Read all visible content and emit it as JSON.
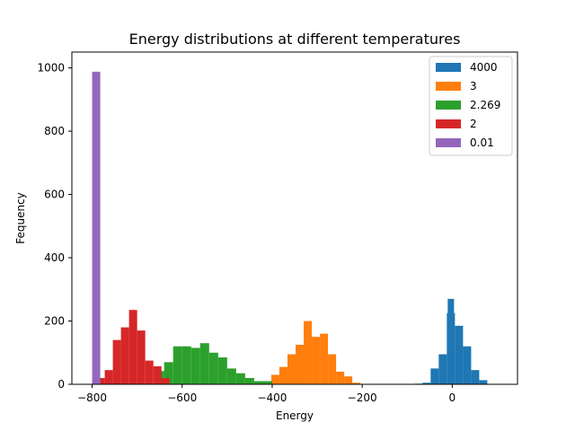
{
  "chart_data": {
    "type": "bar",
    "title": "Energy distributions at different temperatures",
    "xlabel": "Energy",
    "ylabel": "Fequency",
    "xlim": [
      -845,
      145
    ],
    "ylim": [
      0,
      1050
    ],
    "xticks": [
      -800,
      -600,
      -400,
      -200,
      0
    ],
    "yticks": [
      0,
      200,
      400,
      600,
      800,
      1000
    ],
    "legend_position": "top-right",
    "grid": false,
    "series": [
      {
        "name": "4000",
        "color": "#1f77b4",
        "bins": [
          {
            "x0": -84,
            "x1": -66,
            "y": 2
          },
          {
            "x0": -66,
            "x1": -48,
            "y": 5
          },
          {
            "x0": -48,
            "x1": -30,
            "y": 50
          },
          {
            "x0": -30,
            "x1": -12,
            "y": 95
          },
          {
            "x0": -12,
            "x1": 6,
            "y": 225
          },
          {
            "x0": 6,
            "x1": 24,
            "y": 185
          },
          {
            "x0": 24,
            "x1": 42,
            "y": 120
          },
          {
            "x0": 42,
            "x1": 60,
            "y": 45
          },
          {
            "x0": 60,
            "x1": 78,
            "y": 13
          }
        ]
      },
      {
        "name": "3",
        "color": "#ff7f0e",
        "bins": [
          {
            "x0": -420,
            "x1": -402,
            "y": 5
          },
          {
            "x0": -402,
            "x1": -384,
            "y": 30
          },
          {
            "x0": -384,
            "x1": -366,
            "y": 55
          },
          {
            "x0": -366,
            "x1": -348,
            "y": 95
          },
          {
            "x0": -348,
            "x1": -330,
            "y": 125
          },
          {
            "x0": -330,
            "x1": -312,
            "y": 200
          },
          {
            "x0": -312,
            "x1": -294,
            "y": 150
          },
          {
            "x0": -294,
            "x1": -276,
            "y": 160
          },
          {
            "x0": -276,
            "x1": -258,
            "y": 95
          },
          {
            "x0": -258,
            "x1": -240,
            "y": 40
          },
          {
            "x0": -240,
            "x1": -222,
            "y": 25
          },
          {
            "x0": -222,
            "x1": -204,
            "y": 5
          }
        ]
      },
      {
        "name": "2.269",
        "color": "#2ca02c",
        "bins": [
          {
            "x0": -660,
            "x1": -640,
            "y": 42
          },
          {
            "x0": -640,
            "x1": -620,
            "y": 70
          },
          {
            "x0": -620,
            "x1": -600,
            "y": 120
          },
          {
            "x0": -600,
            "x1": -580,
            "y": 120
          },
          {
            "x0": -580,
            "x1": -560,
            "y": 115
          },
          {
            "x0": -560,
            "x1": -540,
            "y": 130
          },
          {
            "x0": -540,
            "x1": -520,
            "y": 100
          },
          {
            "x0": -520,
            "x1": -500,
            "y": 85
          },
          {
            "x0": -500,
            "x1": -480,
            "y": 50
          },
          {
            "x0": -480,
            "x1": -460,
            "y": 35
          },
          {
            "x0": -460,
            "x1": -440,
            "y": 20
          },
          {
            "x0": -440,
            "x1": -420,
            "y": 10
          },
          {
            "x0": -420,
            "x1": -400,
            "y": 10
          }
        ]
      },
      {
        "name": "2",
        "color": "#d62728",
        "bins": [
          {
            "x0": -790,
            "x1": -772,
            "y": 20
          },
          {
            "x0": -772,
            "x1": -754,
            "y": 45
          },
          {
            "x0": -754,
            "x1": -736,
            "y": 140
          },
          {
            "x0": -736,
            "x1": -718,
            "y": 180
          },
          {
            "x0": -718,
            "x1": -700,
            "y": 235
          },
          {
            "x0": -700,
            "x1": -682,
            "y": 170
          },
          {
            "x0": -682,
            "x1": -664,
            "y": 75
          },
          {
            "x0": -664,
            "x1": -646,
            "y": 57
          },
          {
            "x0": -646,
            "x1": -628,
            "y": 20
          }
        ]
      },
      {
        "name": "0.01",
        "color": "#9467bd",
        "bins": [
          {
            "x0": -800,
            "x1": -782,
            "y": 988
          }
        ]
      }
    ],
    "overlay_bins": [
      {
        "series": "4000",
        "x0": -12,
        "x1": 6,
        "y": 270,
        "color": "#1f77b4"
      }
    ]
  }
}
